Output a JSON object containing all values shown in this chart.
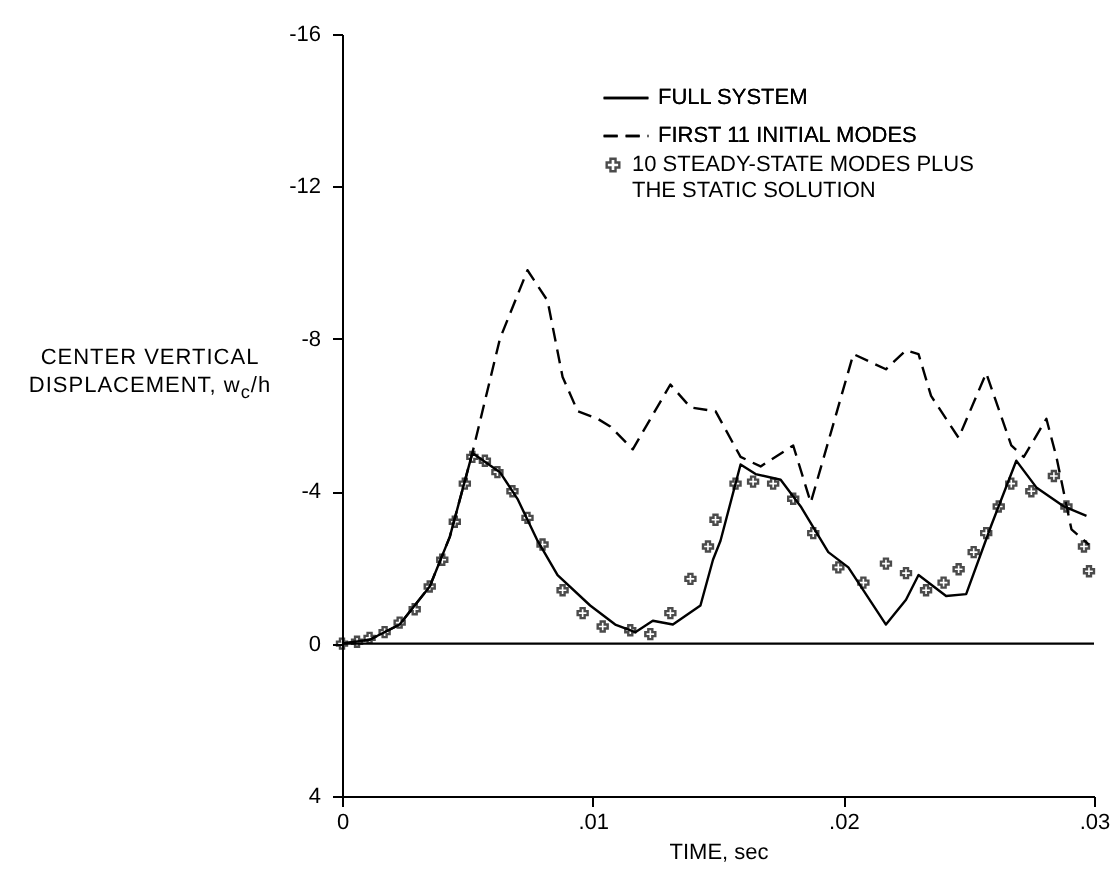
{
  "chart_data": {
    "type": "line",
    "xlabel": "TIME, sec",
    "ylabel": "CENTER VERTICAL DISPLACEMENT, w$_{c}$/h",
    "xlim": [
      0,
      0.03
    ],
    "xticks": [
      {
        "value": 0,
        "label": "0"
      },
      {
        "value": 0.01,
        "label": ".01"
      },
      {
        "value": 0.02,
        "label": ".02"
      },
      {
        "value": 0.03,
        "label": ".03"
      }
    ],
    "ylim": [
      4,
      -16
    ],
    "yticks": [
      4,
      0,
      -4,
      -8,
      -12,
      -16
    ],
    "grid": false,
    "legend": "top right",
    "ref_lines": [
      {
        "axis": "y",
        "value": 0,
        "color": "#000000"
      }
    ],
    "series": [
      {
        "name": "FULL SYSTEM",
        "color": "#000000",
        "type": "line",
        "line_style": "solid",
        "x": [
          0,
          0.0011,
          0.0023,
          0.0035,
          0.0043,
          0.0052,
          0.0063,
          0.007,
          0.0078,
          0.0086,
          0.0099,
          0.0109,
          0.0117,
          0.0124,
          0.0132,
          0.0143,
          0.0148,
          0.0151,
          0.0159,
          0.0165,
          0.0175,
          0.0183,
          0.0194,
          0.0202,
          0.0209,
          0.0217,
          0.0225,
          0.023,
          0.0241,
          0.0249,
          0.0259,
          0.0269,
          0.0277,
          0.0288,
          0.0297
        ],
        "values": [
          0,
          -0.1,
          -0.5,
          -1.5,
          -2.8,
          -5.0,
          -4.5,
          -3.8,
          -2.7,
          -1.8,
          -1.0,
          -0.5,
          -0.3,
          -0.6,
          -0.5,
          -1.0,
          -2.2,
          -2.7,
          -4.7,
          -4.45,
          -4.3,
          -3.6,
          -2.4,
          -2.0,
          -1.3,
          -0.5,
          -1.15,
          -1.8,
          -1.25,
          -1.3,
          -3.1,
          -4.8,
          -4.1,
          -3.6,
          -3.35
        ]
      },
      {
        "name": "FIRST 11 INITIAL MODES",
        "color": "#000000",
        "type": "line",
        "line_style": "dashed",
        "x": [
          0,
          0.0011,
          0.0023,
          0.0035,
          0.0043,
          0.0052,
          0.0063,
          0.0074,
          0.0082,
          0.0088,
          0.0094,
          0.0102,
          0.0107,
          0.0116,
          0.0131,
          0.0139,
          0.0149,
          0.0159,
          0.0167,
          0.018,
          0.0187,
          0.0194,
          0.0204,
          0.0217,
          0.0225,
          0.023,
          0.0235,
          0.0246,
          0.0257,
          0.0267,
          0.0272,
          0.0281,
          0.0285,
          0.0291,
          0.0298
        ],
        "values": [
          0,
          -0.1,
          -0.5,
          -1.5,
          -2.8,
          -5.0,
          -8.0,
          -9.8,
          -9.0,
          -7.0,
          -6.1,
          -5.9,
          -5.7,
          -5.1,
          -6.8,
          -6.2,
          -6.1,
          -4.9,
          -4.65,
          -5.2,
          -3.7,
          -5.3,
          -7.6,
          -7.2,
          -7.7,
          -7.6,
          -6.5,
          -5.4,
          -7.1,
          -5.2,
          -4.9,
          -5.9,
          -4.9,
          -3.0,
          -2.6
        ]
      },
      {
        "name": "10 STEADY-STATE MODES PLUS THE STATIC SOLUTION",
        "color": "#000000",
        "type": "scatter",
        "marker": "cross",
        "x": [
          0,
          0.0006,
          0.0011,
          0.0017,
          0.0023,
          0.0029,
          0.0035,
          0.004,
          0.0045,
          0.0049,
          0.0052,
          0.0057,
          0.0062,
          0.0068,
          0.0074,
          0.008,
          0.0088,
          0.0096,
          0.0104,
          0.0115,
          0.0123,
          0.0131,
          0.0139,
          0.0146,
          0.0149,
          0.0157,
          0.0164,
          0.0172,
          0.018,
          0.0188,
          0.0198,
          0.0208,
          0.0217,
          0.0225,
          0.0233,
          0.024,
          0.0246,
          0.0252,
          0.0257,
          0.0262,
          0.0267,
          0.0275,
          0.0284,
          0.0289,
          0.0296,
          0.0298
        ],
        "values": [
          0,
          -0.05,
          -0.15,
          -0.3,
          -0.55,
          -0.9,
          -1.5,
          -2.2,
          -3.2,
          -4.2,
          -4.9,
          -4.8,
          -4.5,
          -4.0,
          -3.3,
          -2.6,
          -1.4,
          -0.8,
          -0.45,
          -0.35,
          -0.25,
          -0.8,
          -1.7,
          -2.55,
          -3.25,
          -4.2,
          -4.25,
          -4.2,
          -3.8,
          -2.9,
          -2.0,
          -1.6,
          -2.1,
          -1.85,
          -1.4,
          -1.6,
          -1.95,
          -2.4,
          -2.9,
          -3.6,
          -4.2,
          -4.0,
          -4.4,
          -3.6,
          -2.55,
          -1.9
        ]
      }
    ]
  }
}
